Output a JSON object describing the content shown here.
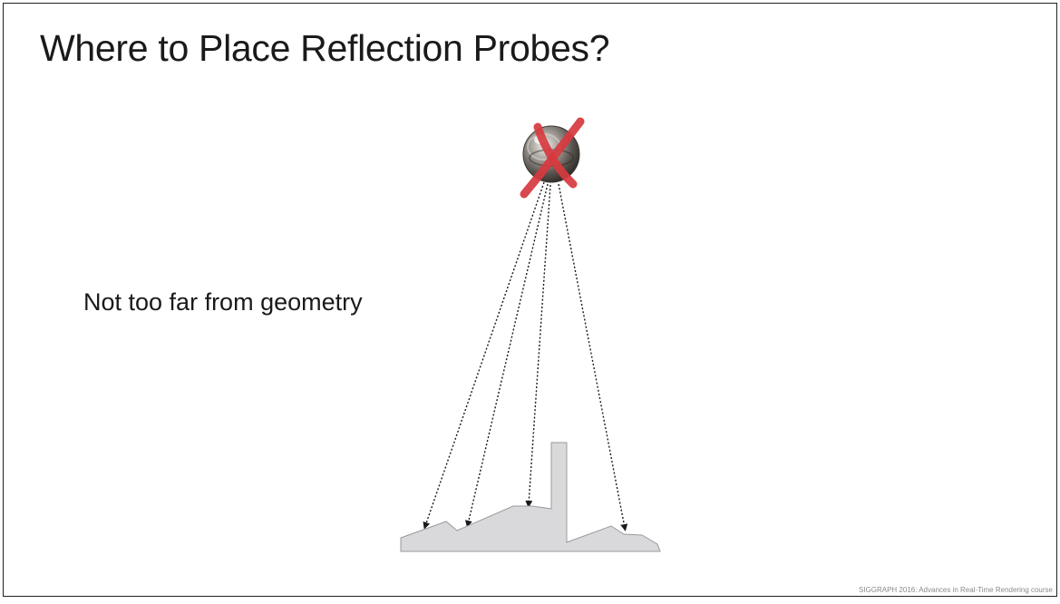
{
  "slide": {
    "title": "Where to Place Reflection Probes?",
    "bullet": "Not too far from geometry",
    "footer": "SIGGRAPH 2016: Advances in Real-Time Rendering course"
  },
  "diagram": {
    "probe_icon": "chrome-sphere-probe",
    "cross_icon": "red-x-mark",
    "cross_color": "#d63a3f",
    "geometry_fill": "#d9d9dc",
    "geometry_stroke": "#9a9a9e"
  }
}
